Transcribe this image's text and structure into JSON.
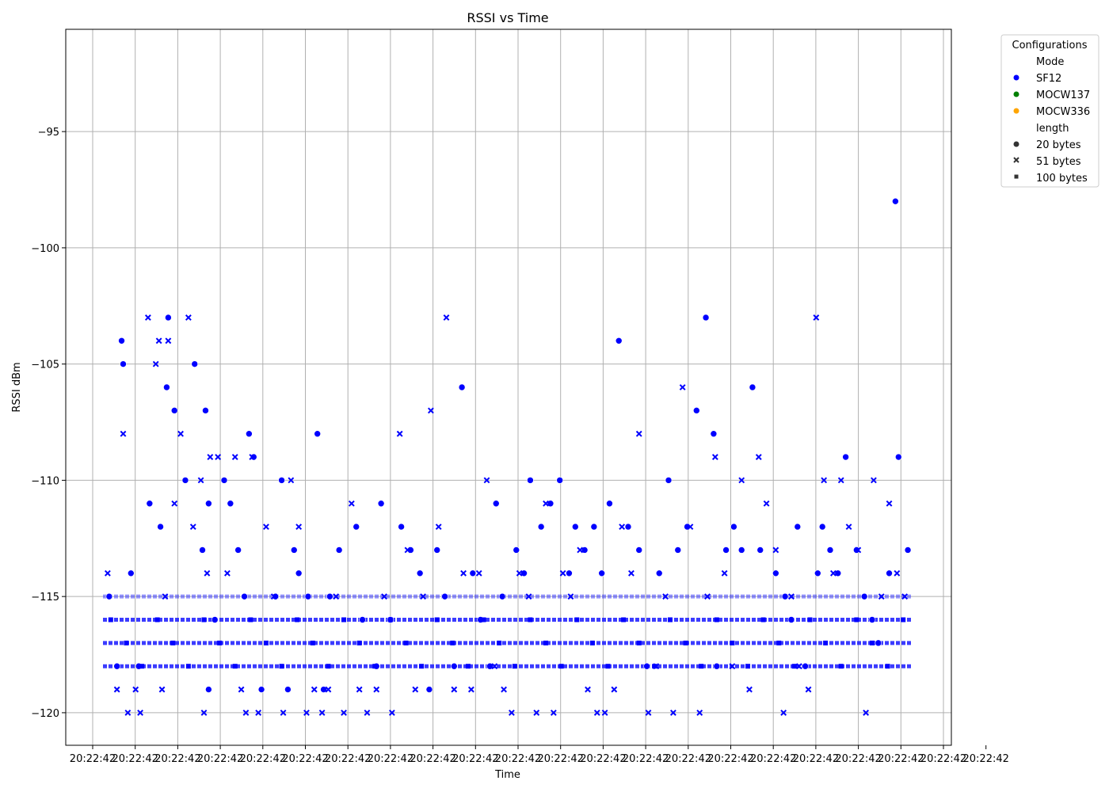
{
  "chart_data": {
    "type": "scatter",
    "title": "RSSI vs Time",
    "xlabel": "Time",
    "ylabel": "RSSI dBm",
    "ylim": [
      -121.4,
      -90.6
    ],
    "y_ticks": [
      -95,
      -100,
      -105,
      -110,
      -115,
      -120
    ],
    "x_tick_labels": [
      "20:22:42",
      "20:22:42",
      "20:22:42",
      "20:22:42",
      "20:22:42",
      "20:22:42",
      "20:22:42",
      "20:22:42",
      "20:22:42",
      "20:22:42",
      "20:22:42",
      "20:22:42",
      "20:22:42",
      "20:22:42",
      "20:22:42",
      "20:22:42",
      "20:22:42",
      "20:22:42",
      "20:22:42",
      "20:22:42",
      "20:22:42",
      "20:22:42"
    ],
    "grid": true,
    "legend": {
      "title": "Configurations",
      "placement": "outside-right",
      "mode_header": "Mode",
      "modes": [
        {
          "label": "SF12",
          "color": "#0000ff"
        },
        {
          "label": "MOCW137",
          "color": "#008000"
        },
        {
          "label": "MOCW336",
          "color": "#ffa500"
        }
      ],
      "length_header": "length",
      "lengths": [
        {
          "label": "20 bytes",
          "marker": "circle"
        },
        {
          "label": "51 bytes",
          "marker": "x"
        },
        {
          "label": "100 bytes",
          "marker": "square"
        }
      ]
    },
    "series": [
      {
        "name": "SF12 / 20 bytes",
        "mode": "SF12",
        "length": "20 bytes",
        "marker": "circle",
        "color": "#0000ff",
        "x": [
          0.4,
          0.9,
          1.2,
          1.3,
          1.8,
          2.3,
          3.0,
          3.7,
          4.1,
          4.2,
          4.6,
          5.3,
          5.9,
          6.4,
          6.6,
          6.8,
          6.8,
          7.2,
          7.8,
          8.2,
          8.7,
          9.1,
          9.4,
          9.7,
          10.2,
          11.1,
          11.5,
          11.9,
          12.3,
          12.6,
          13.2,
          13.8,
          14.2,
          14.6,
          15.2,
          16.3,
          16.7,
          17.6,
          17.9,
          18.5,
          19.2,
          19.8,
          20.4,
          21.0,
          21.5,
          22.0,
          22.6,
          23.1,
          23.8,
          24.3,
          24.9,
          25.3,
          25.7,
          26.6,
          27.1,
          27.5,
          28.2,
          28.8,
          29.4,
          30.0,
          30.4,
          31.0,
          31.6,
          32.1,
          32.6,
          33.2,
          33.8,
          34.5,
          35.0,
          35.8,
          36.4,
          37.0,
          37.6,
          38.2,
          38.8,
          39.3,
          39.5,
          40.1,
          40.6,
          41.1,
          41.8,
          42.3,
          43.3,
          43.9,
          44.3,
          44.7,
          45.2,
          46.0,
          46.3,
          46.8,
          47.3,
          47.8,
          48.5,
          49.0,
          49.5,
          49.9,
          50.6,
          51.0,
          51.2,
          51.8
        ],
        "y": [
          -115,
          -118,
          -104,
          -105,
          -114,
          -118,
          -111,
          -112,
          -106,
          -103,
          -107,
          -110,
          -105,
          -113,
          -107,
          -119,
          -111,
          -116,
          -110,
          -111,
          -113,
          -115,
          -108,
          -109,
          -119,
          -115,
          -110,
          -119,
          -113,
          -114,
          -115,
          -108,
          -119,
          -115,
          -113,
          -112,
          -116,
          -118,
          -111,
          -116,
          -112,
          -113,
          -114,
          -119,
          -113,
          -115,
          -118,
          -106,
          -114,
          -116,
          -118,
          -111,
          -115,
          -113,
          -114,
          -110,
          -112,
          -111,
          -110,
          -114,
          -112,
          -113,
          -112,
          -114,
          -111,
          -104,
          -112,
          -113,
          -118,
          -114,
          -110,
          -113,
          -112,
          -107,
          -103,
          -108,
          -118,
          -113,
          -112,
          -113,
          -106,
          -113,
          -114,
          -115,
          -116,
          -112,
          -118,
          -114,
          -112,
          -113,
          -114,
          -109,
          -113,
          -115,
          -116,
          -117,
          -114,
          -98,
          -109,
          -113
        ]
      },
      {
        "name": "SF12 / 51 bytes",
        "mode": "SF12",
        "length": "51 bytes",
        "marker": "x",
        "color": "#0000ff",
        "x": [
          0.3,
          0.9,
          1.3,
          1.6,
          2.1,
          2.4,
          2.9,
          3.4,
          3.6,
          3.8,
          4.0,
          4.2,
          4.6,
          5.0,
          5.5,
          5.8,
          6.3,
          6.5,
          6.7,
          6.9,
          7.4,
          8.0,
          8.5,
          8.9,
          9.2,
          9.6,
          10.0,
          10.5,
          11.0,
          11.6,
          12.1,
          12.6,
          13.1,
          13.6,
          14.1,
          14.5,
          15.0,
          15.5,
          16.0,
          16.5,
          17.0,
          17.6,
          18.1,
          18.6,
          19.1,
          19.6,
          20.1,
          20.6,
          21.1,
          21.6,
          22.1,
          22.6,
          23.2,
          23.7,
          24.2,
          24.7,
          25.2,
          25.8,
          26.3,
          26.8,
          27.4,
          27.9,
          28.5,
          29.0,
          29.6,
          30.1,
          30.7,
          31.2,
          31.8,
          32.3,
          32.9,
          33.4,
          34.0,
          34.5,
          35.1,
          35.6,
          36.2,
          36.7,
          37.3,
          37.8,
          38.4,
          38.9,
          39.4,
          40.0,
          40.5,
          41.1,
          41.6,
          42.2,
          42.7,
          43.3,
          43.8,
          44.3,
          44.8,
          45.4,
          45.9,
          46.4,
          47.0,
          47.5,
          48.0,
          48.6,
          49.1,
          49.6,
          50.1,
          50.6,
          51.1,
          51.6
        ],
        "y": [
          -114,
          -119,
          -108,
          -120,
          -119,
          -120,
          -103,
          -105,
          -104,
          -119,
          -115,
          -104,
          -111,
          -108,
          -103,
          -112,
          -110,
          -120,
          -114,
          -109,
          -109,
          -114,
          -109,
          -119,
          -120,
          -109,
          -120,
          -112,
          -115,
          -120,
          -110,
          -112,
          -120,
          -119,
          -120,
          -119,
          -115,
          -120,
          -111,
          -119,
          -120,
          -119,
          -115,
          -120,
          -108,
          -113,
          -119,
          -115,
          -107,
          -112,
          -103,
          -119,
          -114,
          -119,
          -114,
          -110,
          -118,
          -119,
          -120,
          -114,
          -115,
          -120,
          -111,
          -120,
          -114,
          -115,
          -113,
          -119,
          -120,
          -120,
          -119,
          -112,
          -114,
          -108,
          -120,
          -118,
          -115,
          -120,
          -106,
          -112,
          -120,
          -115,
          -109,
          -114,
          -118,
          -110,
          -119,
          -109,
          -111,
          -113,
          -120,
          -115,
          -118,
          -119,
          -103,
          -110,
          -114,
          -110,
          -112,
          -113,
          -120,
          -110,
          -115,
          -111,
          -114,
          -115
        ]
      },
      {
        "name": "SF12 / 100 bytes",
        "mode": "SF12",
        "length": "100 bytes",
        "marker": "square",
        "color": "#0000ff",
        "x": [
          0.5,
          1.5,
          2.5,
          3.5,
          4.5,
          5.5,
          6.5,
          7.5,
          8.5,
          9.5,
          10.5,
          11.5,
          12.5,
          13.5,
          14.5,
          15.5,
          16.5,
          17.5,
          18.5,
          19.5,
          20.5,
          21.5,
          22.5,
          23.5,
          24.5,
          25.5,
          26.5,
          27.5,
          28.5,
          29.5,
          30.5,
          31.5,
          32.5,
          33.5,
          34.5,
          35.5,
          36.5,
          37.5,
          38.5,
          39.5,
          40.5,
          41.5,
          42.5,
          43.5,
          44.5,
          45.5,
          46.5,
          47.5,
          48.5,
          49.5,
          50.5,
          51.5
        ],
        "y": [
          -116,
          -117,
          -118,
          -116,
          -117,
          -118,
          -116,
          -117,
          -118,
          -116,
          -117,
          -118,
          -116,
          -117,
          -118,
          -116,
          -117,
          -118,
          -116,
          -117,
          -118,
          -116,
          -117,
          -118,
          -116,
          -117,
          -118,
          -116,
          -117,
          -118,
          -116,
          -117,
          -118,
          -116,
          -117,
          -118,
          -116,
          -117,
          -118,
          -116,
          -117,
          -118,
          -116,
          -117,
          -118,
          -116,
          -117,
          -118,
          -116,
          -117,
          -118,
          -116
        ]
      }
    ]
  }
}
